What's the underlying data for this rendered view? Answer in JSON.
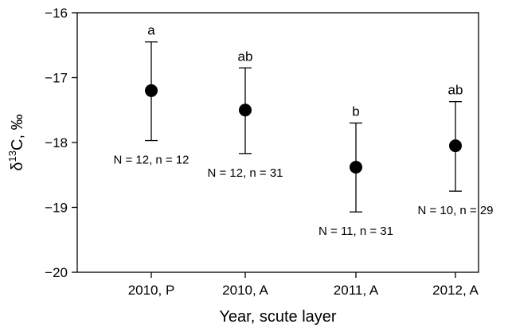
{
  "chart_data": {
    "type": "scatter",
    "xlabel": "Year, scute layer",
    "ylabel": {
      "prefix": "δ",
      "sup": "13",
      "suffix": "C, ‰"
    },
    "ylim": [
      -20,
      -16
    ],
    "yticks": [
      -20,
      -19,
      -18,
      -17,
      -16
    ],
    "yticklabels": [
      "−20",
      "−19",
      "−18",
      "−17",
      "−16"
    ],
    "grid": false,
    "categories": [
      "2010, P",
      "2010, A",
      "2011, A",
      "2012, A"
    ],
    "points": [
      {
        "category": "2010, P",
        "mean": -17.2,
        "lower": -17.97,
        "upper": -16.45,
        "letter": "a",
        "sample": "N = 12, n = 12"
      },
      {
        "category": "2010, A",
        "mean": -17.5,
        "lower": -18.17,
        "upper": -16.85,
        "letter": "ab",
        "sample": "N = 12, n = 31"
      },
      {
        "category": "2011, A",
        "mean": -18.38,
        "lower": -19.07,
        "upper": -17.7,
        "letter": "b",
        "sample": "N = 11, n = 31"
      },
      {
        "category": "2012, A",
        "mean": -18.05,
        "lower": -18.75,
        "upper": -17.37,
        "letter": "ab",
        "sample": "N = 10, n = 29"
      }
    ]
  }
}
